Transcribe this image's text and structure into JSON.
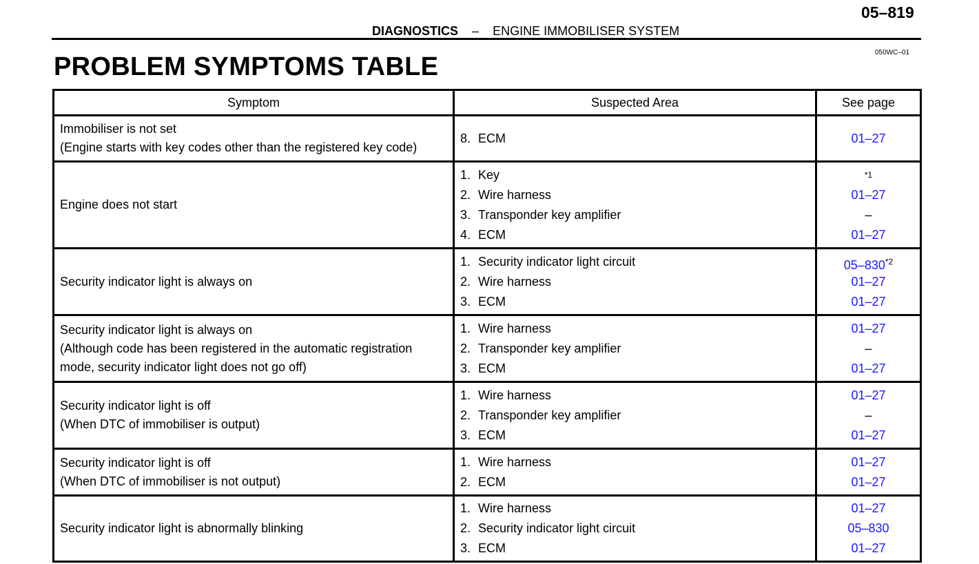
{
  "header": {
    "page_number": "05–819",
    "section": "DIAGNOSTICS",
    "separator": "–",
    "subsection": "ENGINE IMMOBILISER SYSTEM",
    "doc_code": "050WC–01",
    "title": "PROBLEM SYMPTOMS TABLE"
  },
  "table": {
    "columns": [
      "Symptom",
      "Suspected Area",
      "See page"
    ],
    "rows": [
      {
        "symptom": [
          "Immobiliser is not set",
          "(Engine starts with key codes other than the registered key code)"
        ],
        "height": 67,
        "items": [
          {
            "num": "8.",
            "text": "ECM",
            "page": "01–27",
            "link": true
          }
        ]
      },
      {
        "symptom": [
          "Engine does not start"
        ],
        "height": 126,
        "items": [
          {
            "num": "1.",
            "text": "Key",
            "page": "",
            "sup": "*1"
          },
          {
            "num": "2.",
            "text": "Wire harness",
            "page": "01–27",
            "link": true
          },
          {
            "num": "3.",
            "text": "Transponder key amplifier",
            "page": "–"
          },
          {
            "num": "4.",
            "text": "ECM",
            "page": "01–27",
            "link": true
          }
        ]
      },
      {
        "symptom": [
          "Security indicator light is always on"
        ],
        "height": 97,
        "items": [
          {
            "num": "1.",
            "text": "Security indicator light circuit",
            "page": "05–830",
            "link": true,
            "sup": "*2"
          },
          {
            "num": "2.",
            "text": "Wire harness",
            "page": "01–27",
            "link": true
          },
          {
            "num": "3.",
            "text": "ECM",
            "page": "01–27",
            "link": true
          }
        ]
      },
      {
        "symptom": [
          "Security indicator light is always on",
          "(Although code has been registered in the automatic registration",
          "mode, security indicator light does not go off)"
        ],
        "height": 97,
        "items": [
          {
            "num": "1.",
            "text": "Wire harness",
            "page": "01–27",
            "link": true
          },
          {
            "num": "2.",
            "text": "Transponder key amplifier",
            "page": "–"
          },
          {
            "num": "3.",
            "text": "ECM",
            "page": "01–27",
            "link": true
          }
        ]
      },
      {
        "symptom": [
          "Security indicator light is off",
          "(When DTC of immobiliser is output)"
        ],
        "height": 97,
        "items": [
          {
            "num": "1.",
            "text": "Wire harness",
            "page": "01–27",
            "link": true
          },
          {
            "num": "2.",
            "text": "Transponder key amplifier",
            "page": "–"
          },
          {
            "num": "3.",
            "text": "ECM",
            "page": "01–27",
            "link": true
          }
        ]
      },
      {
        "symptom": [
          "Security indicator light is off",
          "(When DTC of immobiliser is not output)"
        ],
        "height": 68,
        "items": [
          {
            "num": "1.",
            "text": "Wire harness",
            "page": "01–27",
            "link": true
          },
          {
            "num": "2.",
            "text": "ECM",
            "page": "01–27",
            "link": true
          }
        ]
      },
      {
        "symptom": [
          "Security indicator light is abnormally blinking"
        ],
        "height": 96,
        "items": [
          {
            "num": "1.",
            "text": "Wire harness",
            "page": "01–27",
            "link": true
          },
          {
            "num": "2.",
            "text": "Security indicator light circuit",
            "page": "05–830",
            "link": true
          },
          {
            "num": "3.",
            "text": "ECM",
            "page": "01–27",
            "link": true
          }
        ]
      }
    ]
  }
}
